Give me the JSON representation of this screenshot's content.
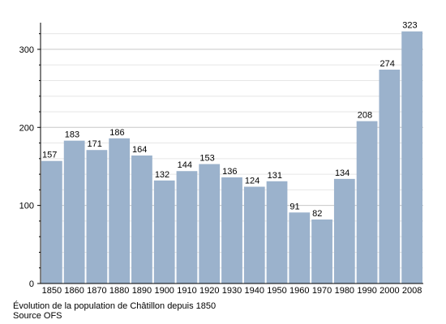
{
  "chart_data": {
    "type": "bar",
    "categories": [
      "1850",
      "1860",
      "1870",
      "1880",
      "1890",
      "1900",
      "1910",
      "1920",
      "1930",
      "1940",
      "1950",
      "1960",
      "1970",
      "1980",
      "1990",
      "2000",
      "2008"
    ],
    "values": [
      157,
      183,
      171,
      186,
      164,
      132,
      144,
      153,
      136,
      124,
      131,
      91,
      82,
      134,
      208,
      274,
      323
    ],
    "ylim": [
      0,
      330
    ],
    "yticks": [
      0,
      100,
      200,
      300
    ],
    "grid": true,
    "bar_color": "#9bb2cc",
    "grid_color": "#cccccc"
  },
  "caption": {
    "line1": "Évolution de la population de Châtillon depuis 1850",
    "line2": "Source OFS"
  }
}
